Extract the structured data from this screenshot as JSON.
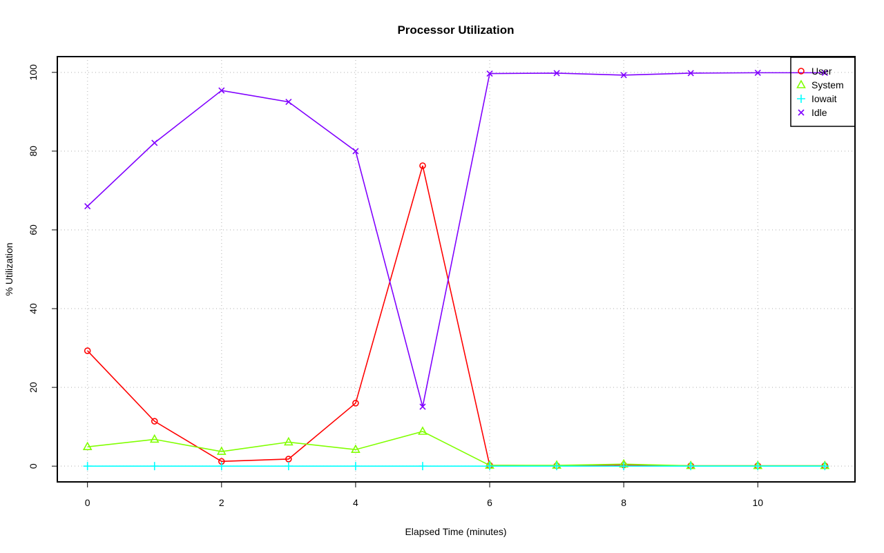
{
  "chart_data": {
    "type": "line",
    "title": "Processor Utilization",
    "xlabel": "Elapsed Time (minutes)",
    "ylabel": "% Utilization",
    "xlim": [
      -0.45,
      11.45
    ],
    "ylim": [
      -4,
      104
    ],
    "xticks": [
      0,
      2,
      4,
      6,
      8,
      10
    ],
    "yticks": [
      0,
      20,
      40,
      60,
      80,
      100
    ],
    "grid": true,
    "legend_position": "top-right",
    "x": [
      0,
      1,
      2,
      3,
      4,
      5,
      6,
      7,
      8,
      9,
      10,
      11
    ],
    "series": [
      {
        "name": "User",
        "color": "#ff0000",
        "marker": "circle",
        "values": [
          29.3,
          11.4,
          1.2,
          1.8,
          16.0,
          76.3,
          0.2,
          0.1,
          0.3,
          0.1,
          0.1,
          0.1
        ]
      },
      {
        "name": "System",
        "color": "#80ff00",
        "marker": "triangle",
        "values": [
          4.9,
          6.8,
          3.7,
          6.1,
          4.2,
          8.8,
          0.2,
          0.2,
          0.5,
          0.1,
          0.1,
          0.1
        ]
      },
      {
        "name": "Iowait",
        "color": "#00ffff",
        "marker": "plus",
        "values": [
          0,
          0,
          0,
          0,
          0,
          0,
          0,
          0,
          0,
          0,
          0,
          0
        ]
      },
      {
        "name": "Idle",
        "color": "#8000ff",
        "marker": "cross",
        "values": [
          66.0,
          82.1,
          95.4,
          92.5,
          80.0,
          15.1,
          99.7,
          99.8,
          99.3,
          99.8,
          99.9,
          99.9
        ]
      }
    ]
  }
}
